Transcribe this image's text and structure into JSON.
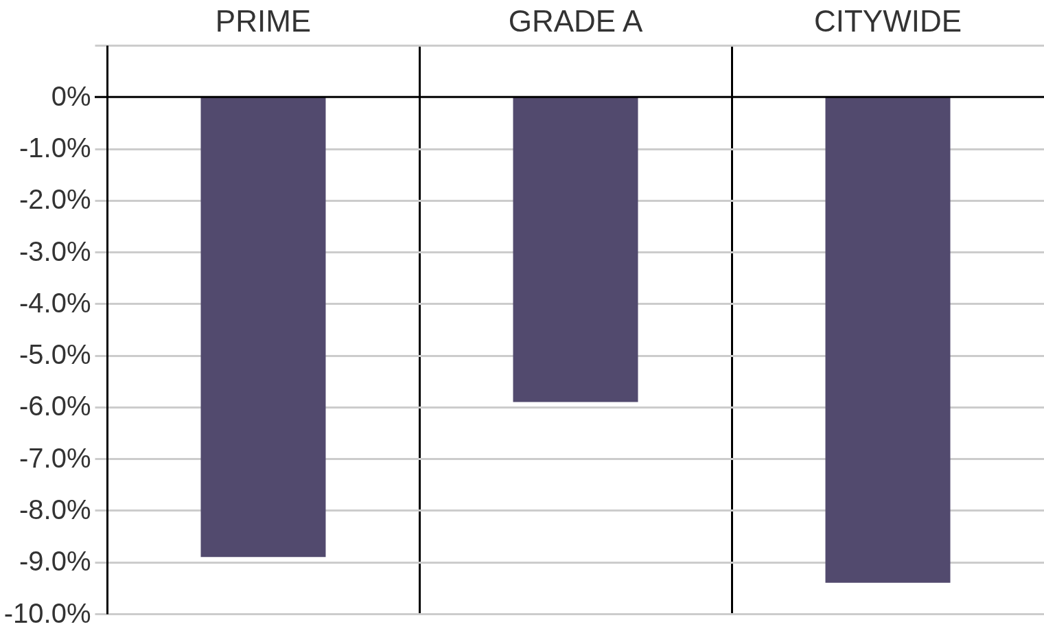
{
  "chart_data": {
    "type": "bar",
    "categories": [
      "PRIME",
      "GRADE A",
      "CITYWIDE"
    ],
    "values": [
      -8.9,
      -5.9,
      -9.4
    ],
    "color": "#524a6e",
    "ylim": [
      -10,
      1
    ],
    "yticks": [
      {
        "value": 1,
        "label": null
      },
      {
        "value": 0,
        "label": "0%"
      },
      {
        "value": -1,
        "label": "-1.0%"
      },
      {
        "value": -2,
        "label": "-2.0%"
      },
      {
        "value": -3,
        "label": "-3.0%"
      },
      {
        "value": -4,
        "label": "-4.0%"
      },
      {
        "value": -5,
        "label": "-5.0%"
      },
      {
        "value": -6,
        "label": "-6.0%"
      },
      {
        "value": -7,
        "label": "-7.0%"
      },
      {
        "value": -8,
        "label": "-8.0%"
      },
      {
        "value": -9,
        "label": "-9.0%"
      },
      {
        "value": -10,
        "label": "-10.0%"
      }
    ],
    "grid": "y"
  }
}
